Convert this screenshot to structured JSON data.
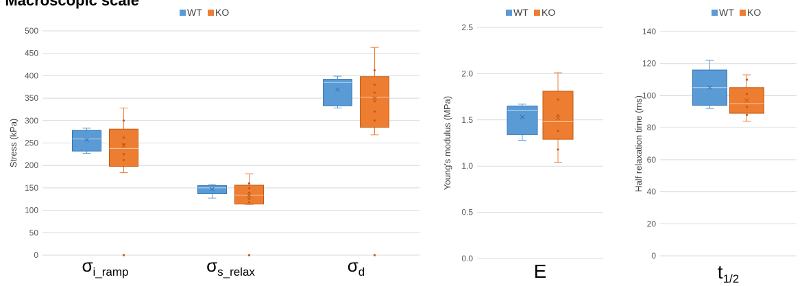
{
  "header": {
    "title": "A) Macroscopic scale"
  },
  "colors": {
    "wt_fill": "#5b9bd5",
    "wt_stroke": "#2e75b6",
    "ko_fill": "#ed7d31",
    "ko_stroke": "#c55a11",
    "grid": "#d9d9d9"
  },
  "chart_data": [
    {
      "type": "box",
      "ylabel": "Stress (kPa)",
      "ylim": [
        0,
        500
      ],
      "yticks": [
        "0",
        "50",
        "100",
        "150",
        "200",
        "250",
        "300",
        "350",
        "400",
        "450",
        "500"
      ],
      "legend": {
        "position": "top",
        "entries": [
          "WT",
          "KO"
        ]
      },
      "categories": [
        {
          "symbol": "σ",
          "sub": "i_ramp"
        },
        {
          "symbol": "σ",
          "sub": "s_relax"
        },
        {
          "symbol": "σ",
          "sub": "d"
        }
      ],
      "series": [
        {
          "name": "WT",
          "boxes": [
            {
              "min": 227,
              "q1": 232,
              "median": 259,
              "q3": 278,
              "max": 283,
              "mean": 257,
              "points": []
            },
            {
              "min": 127,
              "q1": 137,
              "median": 150,
              "q3": 155,
              "max": 158,
              "mean": 147,
              "points": []
            },
            {
              "min": 328,
              "q1": 333,
              "median": 385,
              "q3": 392,
              "max": 399,
              "mean": 369,
              "points": []
            }
          ]
        },
        {
          "name": "KO",
          "boxes": [
            {
              "min": 184,
              "q1": 198,
              "median": 238,
              "q3": 281,
              "max": 328,
              "mean": 244,
              "points": [
                0,
                212,
                225,
                247,
                262,
                300
              ]
            },
            {
              "min": 113,
              "q1": 114,
              "median": 134,
              "q3": 156,
              "max": 181,
              "mean": 133,
              "points": [
                0,
                118,
                126,
                139,
                149,
                160
              ]
            },
            {
              "min": 268,
              "q1": 285,
              "median": 352,
              "q3": 398,
              "max": 463,
              "mean": 350,
              "points": [
                0,
                300,
                320,
                343,
                362,
                380,
                412
              ]
            }
          ]
        }
      ]
    },
    {
      "type": "box",
      "ylabel": "Young's modulus (MPa)",
      "ylim": [
        0,
        2.5
      ],
      "yticks": [
        "0.0",
        "0.5",
        "1.0",
        "1.5",
        "2.0",
        "2.5"
      ],
      "legend": {
        "position": "top",
        "entries": [
          "WT",
          "KO"
        ]
      },
      "categories": [
        {
          "symbol": "E",
          "sub": ""
        }
      ],
      "series": [
        {
          "name": "WT",
          "boxes": [
            {
              "min": 1.28,
              "q1": 1.34,
              "median": 1.6,
              "q3": 1.65,
              "max": 1.67,
              "mean": 1.53,
              "points": []
            }
          ]
        },
        {
          "name": "KO",
          "boxes": [
            {
              "min": 1.04,
              "q1": 1.29,
              "median": 1.48,
              "q3": 1.81,
              "max": 2.01,
              "mean": 1.52,
              "points": [
                1.18,
                1.38,
                1.55,
                1.72
              ]
            }
          ]
        }
      ]
    },
    {
      "type": "box",
      "ylabel": "Half relaxation time (ms)",
      "ylim": [
        0,
        140
      ],
      "yticks": [
        "0",
        "20",
        "40",
        "60",
        "80",
        "100",
        "120",
        "140"
      ],
      "legend": {
        "position": "top",
        "entries": [
          "WT",
          "KO"
        ]
      },
      "categories": [
        {
          "symbol": "t",
          "sub": "1/2"
        }
      ],
      "series": [
        {
          "name": "WT",
          "boxes": [
            {
              "min": 92,
              "q1": 94,
              "median": 105,
              "q3": 116,
              "max": 122,
              "mean": 105,
              "points": []
            }
          ]
        },
        {
          "name": "KO",
          "boxes": [
            {
              "min": 84,
              "q1": 89,
              "median": 95,
              "q3": 105,
              "max": 113,
              "mean": 97,
              "points": [
                88,
                93,
                101,
                110
              ]
            }
          ]
        }
      ]
    }
  ]
}
